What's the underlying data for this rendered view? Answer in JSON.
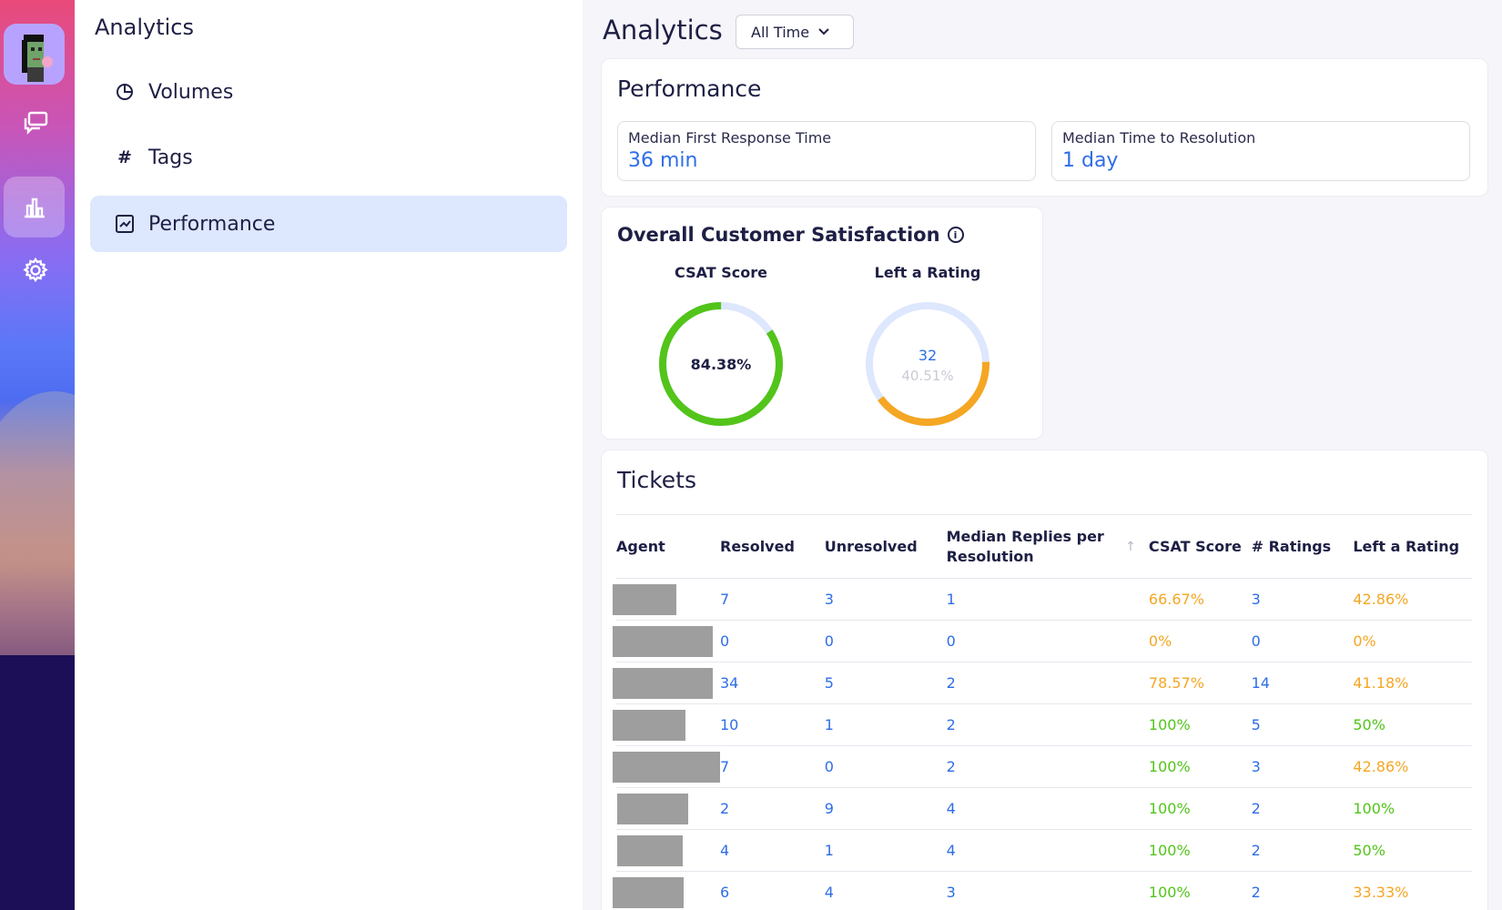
{
  "rail": {
    "items": [
      {
        "name": "avatar"
      },
      {
        "name": "conversations-icon"
      },
      {
        "name": "analytics-icon",
        "active": true
      },
      {
        "name": "settings-icon"
      }
    ]
  },
  "sidebar": {
    "title": "Analytics",
    "items": [
      {
        "label": "Volumes",
        "icon": "pie-chart-icon"
      },
      {
        "label": "Tags",
        "icon": "hash-icon"
      },
      {
        "label": "Performance",
        "icon": "line-chart-icon",
        "active": true
      }
    ]
  },
  "header": {
    "title": "Analytics",
    "range": "All Time"
  },
  "performance": {
    "title": "Performance",
    "metrics": [
      {
        "label": "Median First Response Time",
        "value": "36 min"
      },
      {
        "label": "Median Time to Resolution",
        "value": "1 day"
      }
    ]
  },
  "satisfaction": {
    "title": "Overall Customer Satisfaction",
    "csat": {
      "label": "CSAT Score",
      "value": "84.38%",
      "fraction": 0.8438
    },
    "left_rating": {
      "label": "Left a Rating",
      "count": "32",
      "percent": "40.51%",
      "fraction": 0.4051
    }
  },
  "tickets": {
    "title": "Tickets",
    "columns": [
      "Agent",
      "Resolved",
      "Unresolved",
      "Median Replies per Resolution",
      "CSAT Score",
      "# Ratings",
      "Left a Rating"
    ],
    "rows": [
      {
        "resolved": "7",
        "unresolved": "3",
        "replies": "1",
        "csat": "66.67%",
        "ratings": "3",
        "left": "42.86%"
      },
      {
        "resolved": "0",
        "unresolved": "0",
        "replies": "0",
        "csat": "0%",
        "ratings": "0",
        "left": "0%"
      },
      {
        "resolved": "34",
        "unresolved": "5",
        "replies": "2",
        "csat": "78.57%",
        "ratings": "14",
        "left": "41.18%"
      },
      {
        "resolved": "10",
        "unresolved": "1",
        "replies": "2",
        "csat": "100%",
        "ratings": "5",
        "left": "50%"
      },
      {
        "resolved": "7",
        "unresolved": "0",
        "replies": "2",
        "csat": "100%",
        "ratings": "3",
        "left": "42.86%"
      },
      {
        "resolved": "2",
        "unresolved": "9",
        "replies": "4",
        "csat": "100%",
        "ratings": "2",
        "left": "100%"
      },
      {
        "resolved": "4",
        "unresolved": "1",
        "replies": "4",
        "csat": "100%",
        "ratings": "2",
        "left": "50%"
      },
      {
        "resolved": "6",
        "unresolved": "4",
        "replies": "3",
        "csat": "100%",
        "ratings": "2",
        "left": "33.33%"
      }
    ]
  },
  "colors": {
    "accent_blue": "#2e6de8",
    "green": "#52c41a",
    "orange": "#f5a623",
    "ring_track": "#dde7fd"
  }
}
